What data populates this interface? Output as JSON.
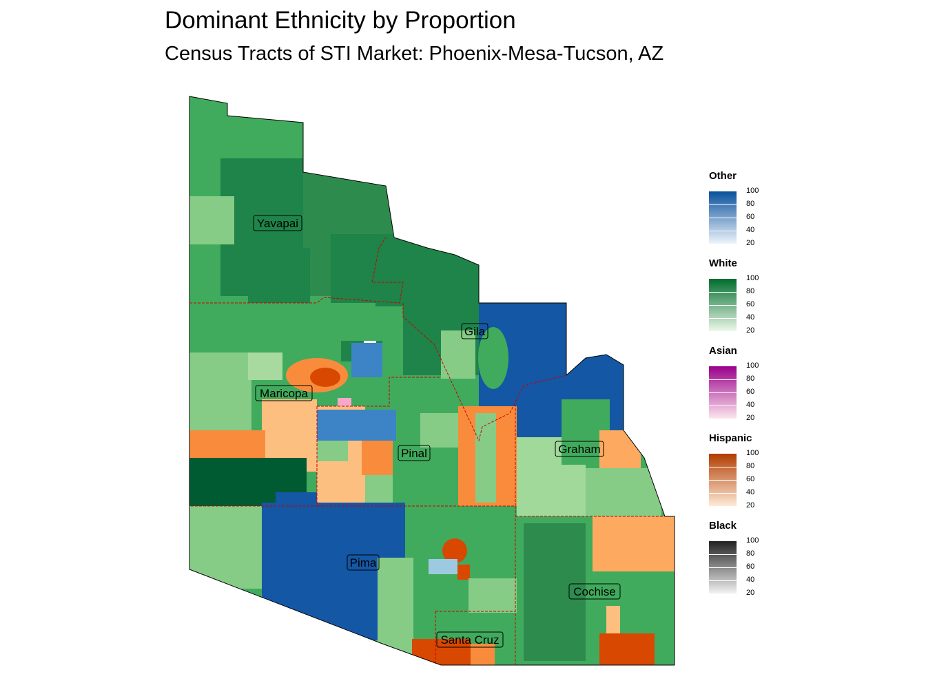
{
  "title": "Dominant Ethnicity by Proportion",
  "subtitle": "Census Tracts of STI Market: Phoenix-Mesa-Tucson, AZ",
  "counties": [
    "Yavapai",
    "Gila",
    "Maricopa",
    "Pinal",
    "Graham",
    "Pima",
    "Cochise",
    "Santa Cruz"
  ],
  "legend": [
    {
      "name": "Other",
      "low_color": "#eef4fb",
      "high_color": "#08519c",
      "ticks": [
        "100",
        "80",
        "60",
        "40",
        "20"
      ]
    },
    {
      "name": "White",
      "low_color": "#edf8ea",
      "high_color": "#006d2c",
      "ticks": [
        "100",
        "80",
        "60",
        "40",
        "20"
      ]
    },
    {
      "name": "Asian",
      "low_color": "#fde6ee",
      "high_color": "#99008a",
      "ticks": [
        "100",
        "80",
        "60",
        "40",
        "20"
      ]
    },
    {
      "name": "Hispanic",
      "low_color": "#feead6",
      "high_color": "#b13c00",
      "ticks": [
        "100",
        "80",
        "60",
        "40",
        "20"
      ]
    },
    {
      "name": "Black",
      "low_color": "#f2f2f2",
      "high_color": "#222222",
      "ticks": [
        "100",
        "80",
        "60",
        "40",
        "20"
      ]
    }
  ],
  "colors": {
    "white_dark": "#1e8449",
    "white_mid": "#41ab5d",
    "white_light": "#86cc86",
    "white_darkest": "#005a32",
    "other_dark": "#1457a5",
    "other_mid": "#3c84c6",
    "other_light": "#9ecae1",
    "hispanic_dark": "#d94801",
    "hispanic_mid": "#f98c3c",
    "hispanic_light": "#fdbf80",
    "asian_light": "#f7a8c8",
    "county_border": "#cc0000"
  }
}
